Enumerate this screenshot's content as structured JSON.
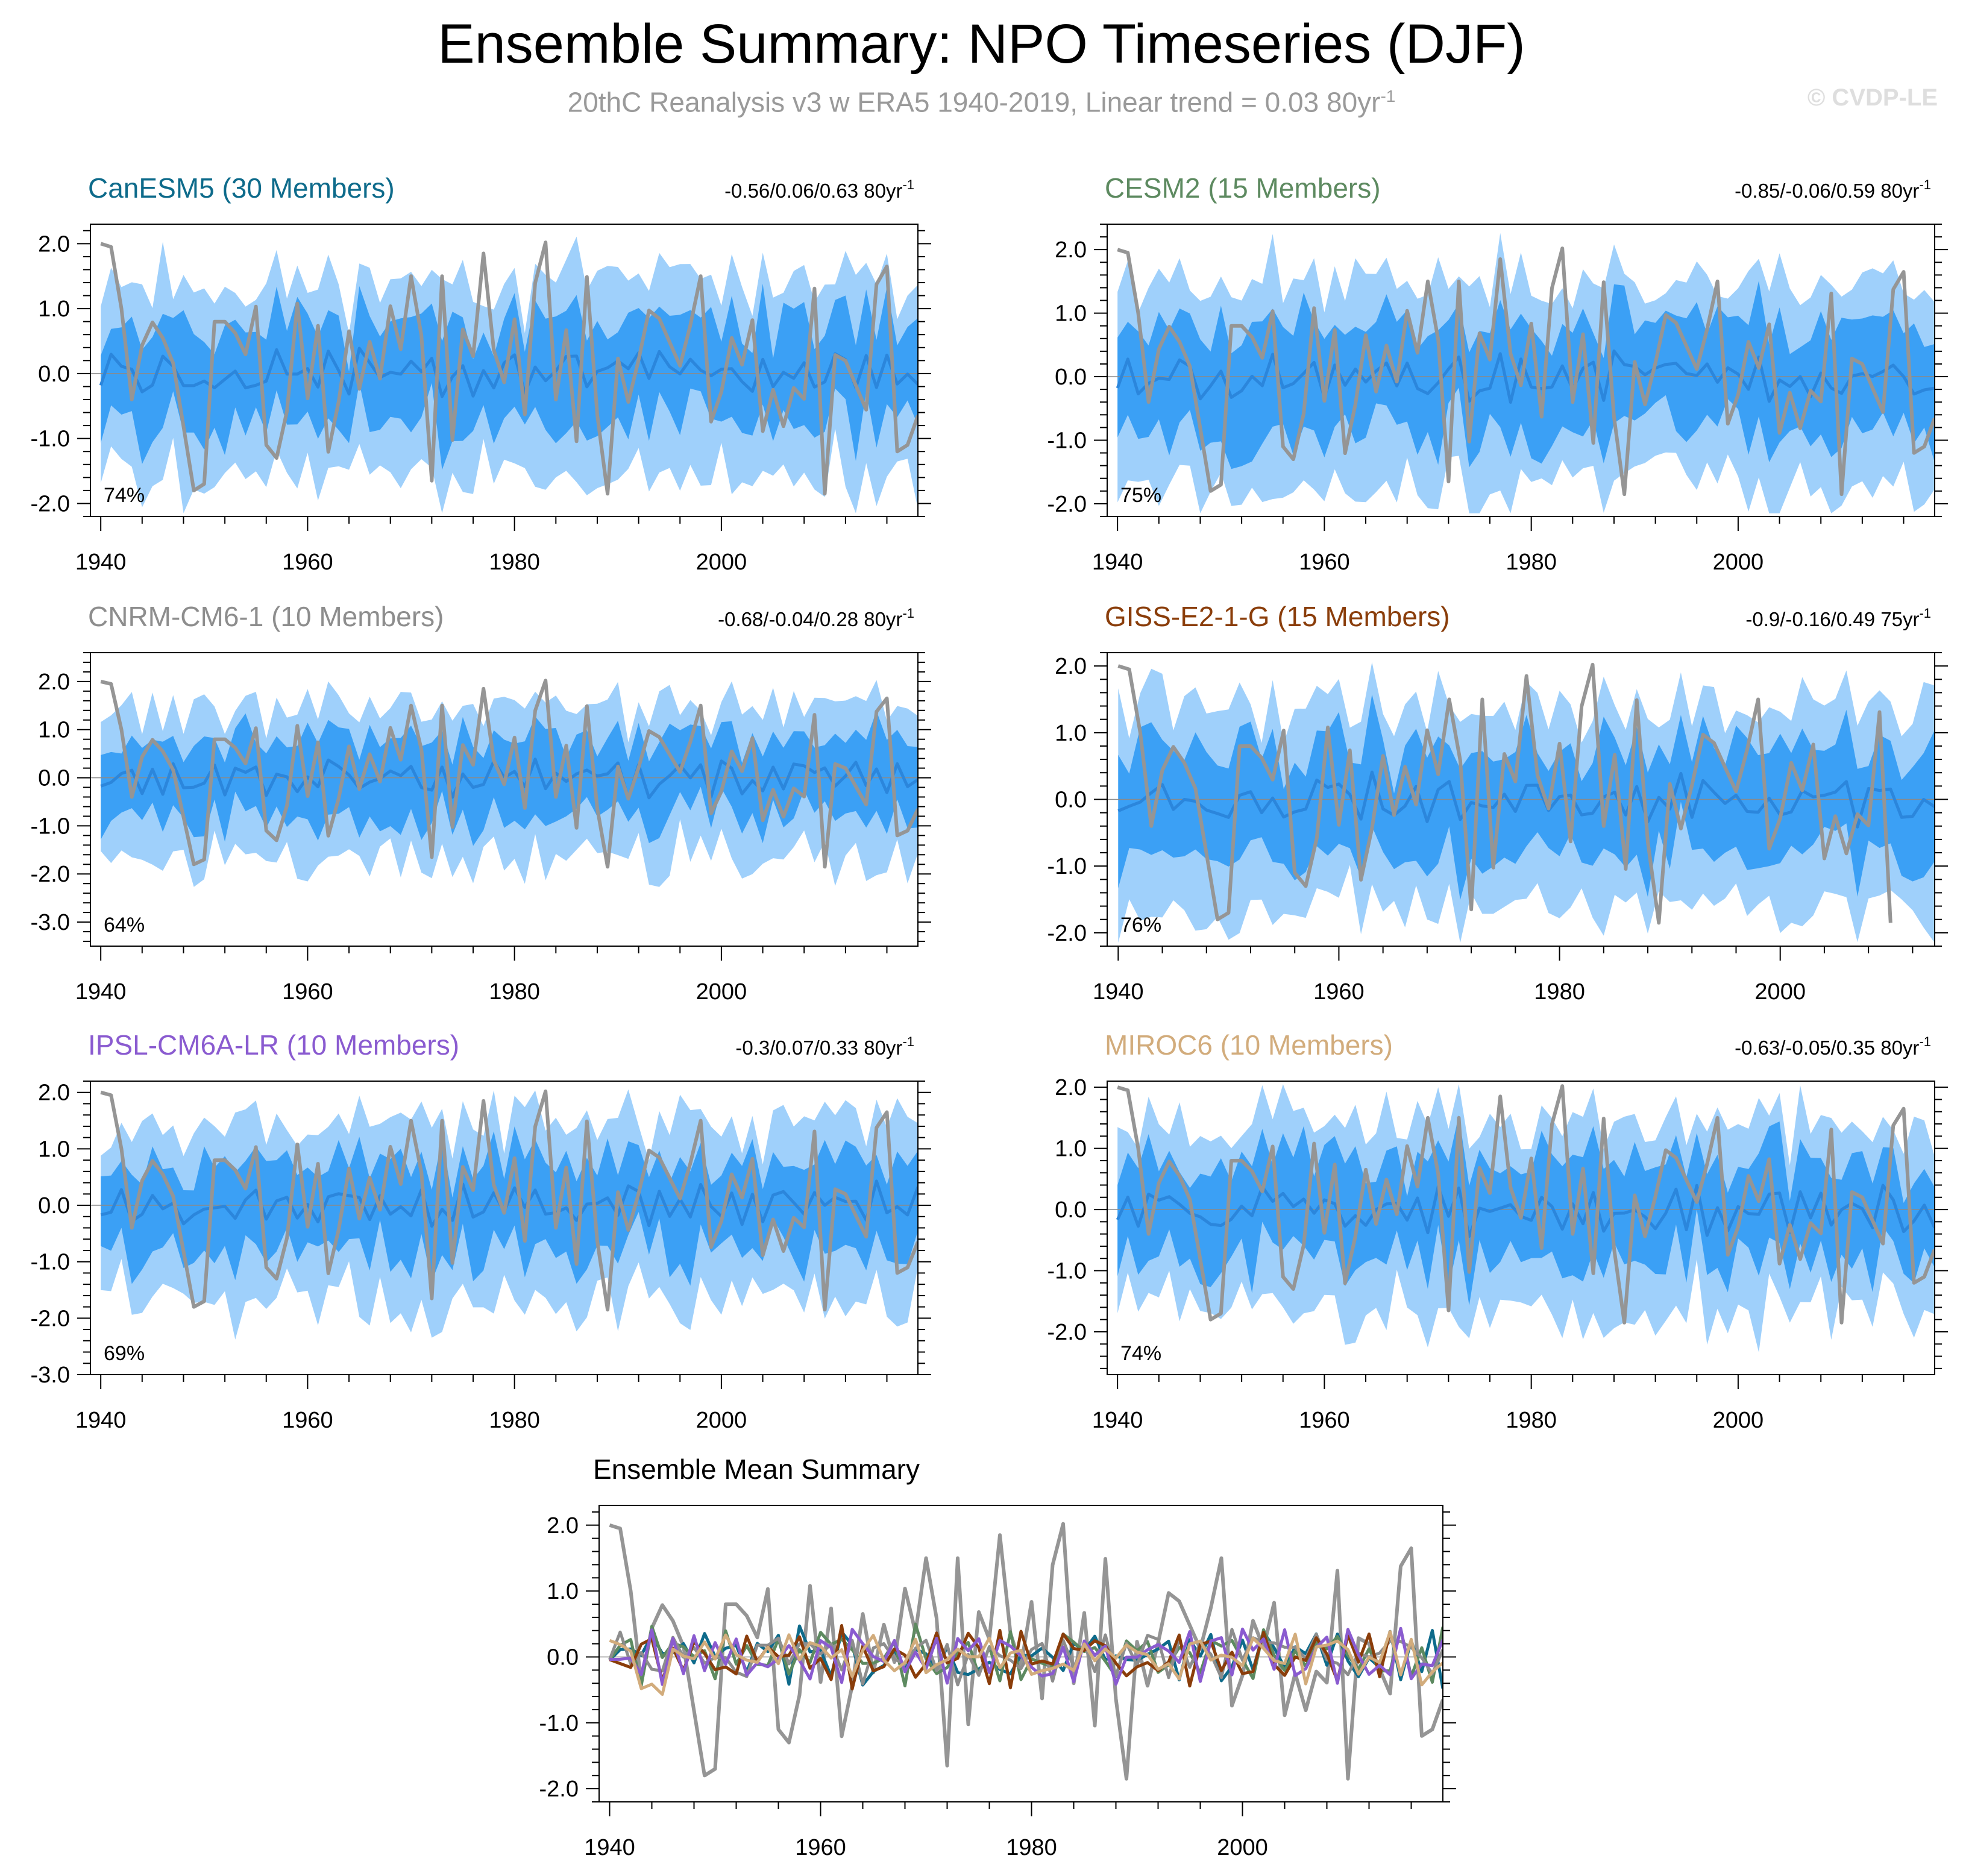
{
  "header": {
    "title": "Ensemble Summary: NPO Timeseries (DJF)",
    "subtitle_main": "20thC Reanalysis v3 w ERA5 1940-2019, Linear trend = 0.03 80yr",
    "subtitle_exp": "-1",
    "watermark": "© CVDP-LE"
  },
  "colors": {
    "band_outer": "#9fd0fb",
    "band_inner": "#3ba0f5",
    "ens_mean": "#2b86dc",
    "observed": "#959595",
    "zero_line": "#8a8a8a",
    "CanESM5": "#0e6b8b",
    "CESM2": "#5d8a60",
    "CNRM-CM6-1": "#8d8d8d",
    "GISS-E2-1-G": "#8a3d0a",
    "IPSL-CM6A-LR": "#8a5bd0",
    "MIROC6": "#d2ac7c"
  },
  "chart_data": [
    {
      "type": "area",
      "id": "CanESM5",
      "title": "CanESM5 (30 Members)",
      "trend_label": "-0.56/0.06/0.63 80yr",
      "trend_exp": "-1",
      "percent_label": "74%",
      "xlim": [
        1939,
        2019
      ],
      "ylim": [
        -2.2,
        2.3
      ],
      "yticks": [
        -2.0,
        -1.0,
        0.0,
        1.0,
        2.0
      ],
      "yticklabels": [
        "-2.0",
        "-1.0",
        "0.0",
        "1.0",
        "2.0"
      ],
      "xticks": [
        1940,
        1960,
        1980,
        2000
      ],
      "xticklabels": [
        "1940",
        "1960",
        "1980",
        "2000"
      ],
      "series": [
        "ens_mean",
        "inner_band",
        "outer_band",
        "observed"
      ],
      "seed": 11,
      "amp": 1.0,
      "obs_end": 2019,
      "model_end": 2019
    },
    {
      "type": "area",
      "id": "CESM2",
      "title": "CESM2 (15 Members)",
      "trend_label": "-0.85/-0.06/0.59 80yr",
      "trend_exp": "-1",
      "percent_label": "75%",
      "xlim": [
        1939,
        2019
      ],
      "ylim": [
        -2.2,
        2.4
      ],
      "yticks": [
        -2.0,
        -1.0,
        0.0,
        1.0,
        2.0
      ],
      "yticklabels": [
        "-2.0",
        "-1.0",
        "0.0",
        "1.0",
        "2.0"
      ],
      "xticks": [
        1940,
        1960,
        1980,
        2000
      ],
      "xticklabels": [
        "1940",
        "1960",
        "1980",
        "2000"
      ],
      "series": [
        "ens_mean",
        "inner_band",
        "outer_band",
        "observed"
      ],
      "seed": 23,
      "amp": 1.1,
      "obs_end": 2019,
      "model_end": 2019
    },
    {
      "type": "area",
      "id": "CNRM-CM6-1",
      "title": "CNRM-CM6-1 (10 Members)",
      "trend_label": "-0.68/-0.04/0.28 80yr",
      "trend_exp": "-1",
      "percent_label": "64%",
      "xlim": [
        1939,
        2019
      ],
      "ylim": [
        -3.5,
        2.6
      ],
      "yticks": [
        -3.0,
        -2.0,
        -1.0,
        0.0,
        1.0,
        2.0
      ],
      "yticklabels": [
        "-3.0",
        "-2.0",
        "-1.0",
        "0.0",
        "1.0",
        "2.0"
      ],
      "xticks": [
        1940,
        1960,
        1980,
        2000
      ],
      "xticklabels": [
        "1940",
        "1960",
        "1980",
        "2000"
      ],
      "series": [
        "ens_mean",
        "inner_band",
        "outer_band",
        "observed"
      ],
      "seed": 37,
      "amp": 1.05,
      "obs_end": 2019,
      "model_end": 2019
    },
    {
      "type": "area",
      "id": "GISS-E2-1-G",
      "title": "GISS-E2-1-G (15 Members)",
      "trend_label": "-0.9/-0.16/0.49 75yr",
      "trend_exp": "-1",
      "percent_label": "76%",
      "xlim": [
        1939,
        2014
      ],
      "ylim": [
        -2.2,
        2.2
      ],
      "yticks": [
        -2.0,
        -1.0,
        0.0,
        1.0,
        2.0
      ],
      "yticklabels": [
        "-2.0",
        "-1.0",
        "0.0",
        "1.0",
        "2.0"
      ],
      "xticks": [
        1940,
        1960,
        1980,
        2000
      ],
      "xticklabels": [
        "1940",
        "1960",
        "1980",
        "2000"
      ],
      "series": [
        "ens_mean",
        "inner_band",
        "outer_band",
        "observed"
      ],
      "seed": 41,
      "amp": 1.0,
      "obs_end": 2010,
      "model_end": 2014
    },
    {
      "type": "area",
      "id": "IPSL-CM6A-LR",
      "title": "IPSL-CM6A-LR (10 Members)",
      "trend_label": "-0.3/0.07/0.33 80yr",
      "trend_exp": "-1",
      "percent_label": "69%",
      "xlim": [
        1939,
        2019
      ],
      "ylim": [
        -3.0,
        2.2
      ],
      "yticks": [
        -3.0,
        -2.0,
        -1.0,
        0.0,
        1.0,
        2.0
      ],
      "yticklabels": [
        "-3.0",
        "-2.0",
        "-1.0",
        "0.0",
        "1.0",
        "2.0"
      ],
      "xticks": [
        1940,
        1960,
        1980,
        2000
      ],
      "xticklabels": [
        "1940",
        "1960",
        "1980",
        "2000"
      ],
      "series": [
        "ens_mean",
        "inner_band",
        "outer_band",
        "observed"
      ],
      "seed": 53,
      "amp": 1.05,
      "obs_end": 2019,
      "model_end": 2019
    },
    {
      "type": "area",
      "id": "MIROC6",
      "title": "MIROC6 (10 Members)",
      "trend_label": "-0.63/-0.05/0.35 80yr",
      "trend_exp": "-1",
      "percent_label": "74%",
      "xlim": [
        1939,
        2019
      ],
      "ylim": [
        -2.7,
        2.1
      ],
      "yticks": [
        -2.0,
        -1.0,
        0.0,
        1.0,
        2.0
      ],
      "yticklabels": [
        "-2.0",
        "-1.0",
        "0.0",
        "1.0",
        "2.0"
      ],
      "xticks": [
        1940,
        1960,
        1980,
        2000
      ],
      "xticklabels": [
        "1940",
        "1960",
        "1980",
        "2000"
      ],
      "series": [
        "ens_mean",
        "inner_band",
        "outer_band",
        "observed"
      ],
      "seed": 67,
      "amp": 1.05,
      "obs_end": 2019,
      "model_end": 2019
    },
    {
      "type": "line",
      "id": "ensemble-mean-summary",
      "title": "Ensemble Mean Summary",
      "xlim": [
        1939,
        2019
      ],
      "ylim": [
        -2.2,
        2.3
      ],
      "yticks": [
        -2.0,
        -1.0,
        0.0,
        1.0,
        2.0
      ],
      "yticklabels": [
        "-2.0",
        "-1.0",
        "0.0",
        "1.0",
        "2.0"
      ],
      "xticks": [
        1940,
        1960,
        1980,
        2000
      ],
      "xticklabels": [
        "1940",
        "1960",
        "1980",
        "2000"
      ],
      "series": [
        "observed",
        "CanESM5",
        "CESM2",
        "CNRM-CM6-1",
        "GISS-E2-1-G",
        "IPSL-CM6A-LR",
        "MIROC6"
      ]
    }
  ],
  "observed_anchor_values": {
    "years": [
      1940,
      1941,
      1942,
      1943,
      1949,
      1950,
      1956,
      1957,
      1970,
      1972,
      1977,
      1983,
      1984,
      1989,
      1998,
      2010,
      2016,
      2017,
      2018,
      2019
    ],
    "values": [
      2.0,
      1.95,
      1.0,
      -0.4,
      -1.8,
      -1.7,
      -1.1,
      -1.3,
      1.5,
      -1.65,
      1.85,
      2.02,
      -0.4,
      -1.85,
      1.5,
      -1.85,
      1.65,
      -1.2,
      -1.1,
      -0.65
    ]
  }
}
